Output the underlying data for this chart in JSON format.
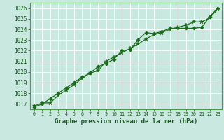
{
  "title": "Graphe pression niveau de la mer (hPa)",
  "x": [
    0,
    1,
    2,
    3,
    4,
    5,
    6,
    7,
    8,
    9,
    10,
    11,
    12,
    13,
    14,
    15,
    16,
    17,
    18,
    19,
    20,
    21,
    22,
    23
  ],
  "line1_star": [
    1016.8,
    1017.1,
    1017.1,
    1017.8,
    1018.3,
    1018.8,
    1019.4,
    1019.9,
    1020.1,
    1021.0,
    1021.4,
    1021.8,
    1022.2,
    1022.6,
    1023.1,
    1023.5,
    1023.7,
    1024.0,
    1024.2,
    1024.4,
    1024.7,
    1024.7,
    1025.1,
    1025.9
  ],
  "line2_diamond": [
    1016.7,
    1017.0,
    1017.5,
    1018.0,
    1018.5,
    1019.0,
    1019.5,
    1019.9,
    1020.5,
    1020.8,
    1021.2,
    1022.0,
    1022.1,
    1023.0,
    1023.7,
    1023.6,
    1023.8,
    1024.1,
    1024.1,
    1024.1,
    1024.1,
    1024.2,
    1025.2,
    1026.0
  ],
  "ylim": [
    1016.5,
    1026.5
  ],
  "xlim": [
    -0.5,
    23.5
  ],
  "yticks": [
    1017,
    1018,
    1019,
    1020,
    1021,
    1022,
    1023,
    1024,
    1025,
    1026
  ],
  "xticks": [
    0,
    1,
    2,
    3,
    4,
    5,
    6,
    7,
    8,
    9,
    10,
    11,
    12,
    13,
    14,
    15,
    16,
    17,
    18,
    19,
    20,
    21,
    22,
    23
  ],
  "line_color": "#1a6b1a",
  "bg_color": "#c8e8e0",
  "grid_color": "#ffffff",
  "border_color": "#4a9a4a",
  "label_color": "#1a5c1a",
  "title_color": "#1a5c1a",
  "bottom_bar_color": "#5aaa5a",
  "figsize": [
    3.2,
    2.0
  ],
  "dpi": 100
}
